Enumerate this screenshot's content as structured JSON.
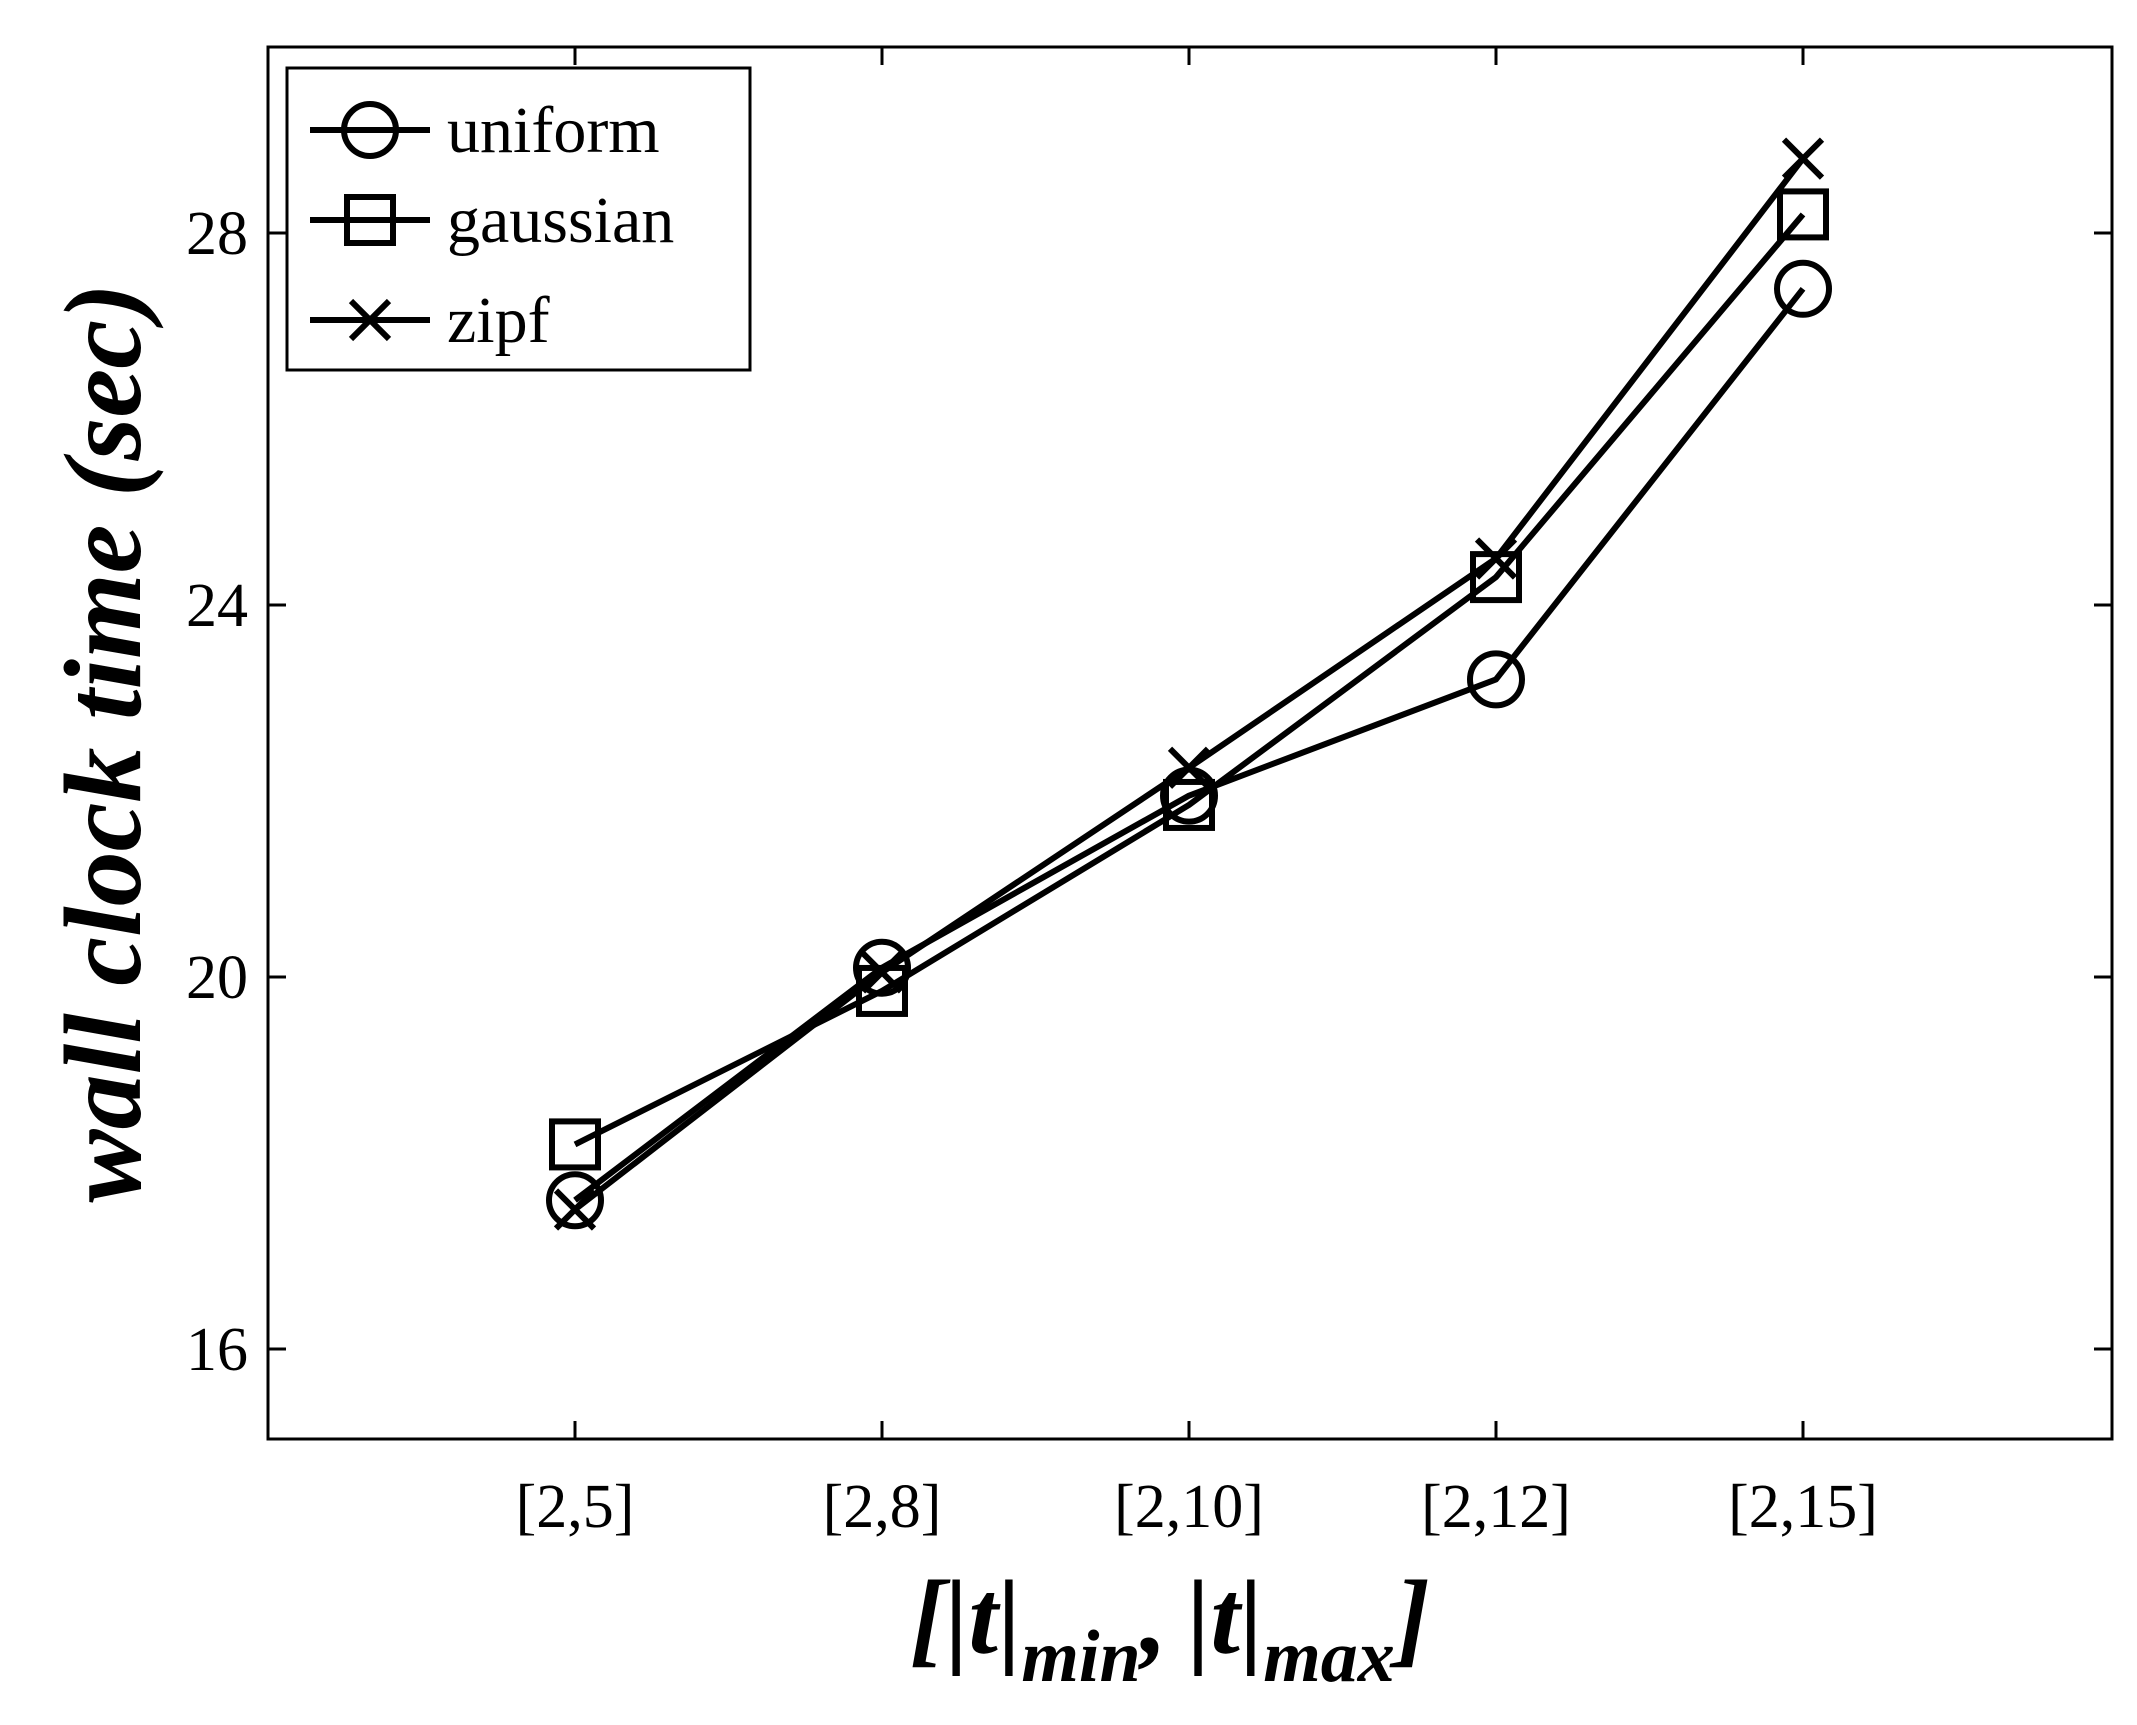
{
  "chart_data": {
    "type": "line",
    "categories": [
      "[2,5]",
      "[2,8]",
      "[2,10]",
      "[2,12]",
      "[2,15]"
    ],
    "series": [
      {
        "name": "uniform",
        "marker": "circle",
        "values": [
          17.6,
          20.1,
          21.95,
          23.2,
          27.4
        ]
      },
      {
        "name": "gaussian",
        "marker": "square",
        "values": [
          18.2,
          19.85,
          21.85,
          24.3,
          28.2
        ]
      },
      {
        "name": "zipf",
        "marker": "x",
        "values": [
          17.5,
          20.05,
          22.25,
          24.5,
          28.8
        ]
      }
    ],
    "ylabel": "wall clock time (sec)",
    "xlabel": {
      "open": "[",
      "t1": "|t|",
      "sub1": "min",
      "comma": ",",
      "t2": "|t|",
      "sub2": "max",
      "close": "]"
    },
    "yticks": [
      "16",
      "20",
      "24",
      "28"
    ],
    "ytick_values": [
      16,
      20,
      24,
      28
    ],
    "ylim": [
      15,
      30
    ],
    "legend_position": "top-left",
    "grid": false,
    "line_color": "#000000"
  }
}
